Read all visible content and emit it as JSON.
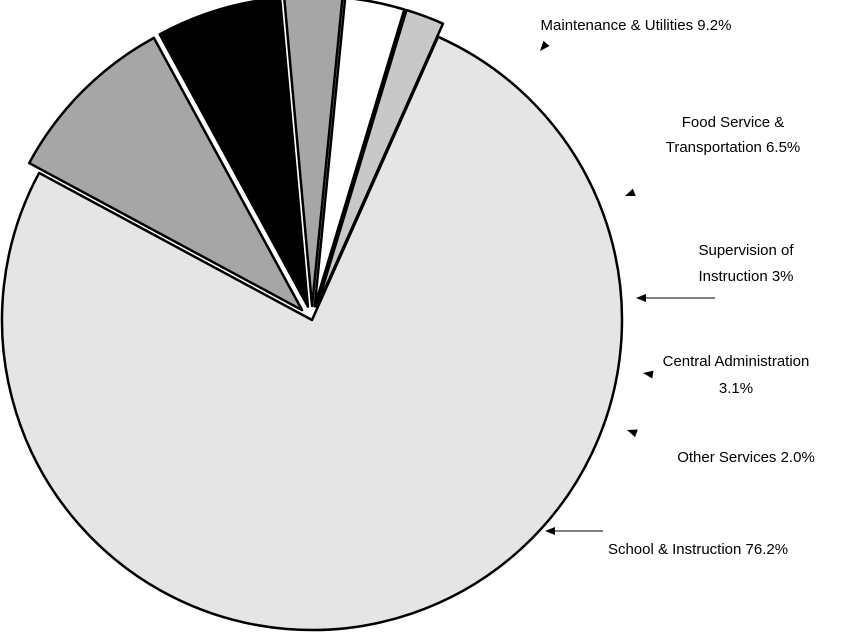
{
  "chart_data": {
    "type": "pie",
    "slices": [
      {
        "label": "School & Instruction",
        "value": 76.2,
        "color": "#e5e5e5",
        "exploded": false,
        "label_lines": [
          "School & Instruction 76.2%"
        ]
      },
      {
        "label": "Maintenance & Utilities",
        "value": 9.2,
        "color": "#a6a6a6",
        "exploded": true,
        "label_lines": [
          "Maintenance & Utilities 9.2%"
        ]
      },
      {
        "label": "Food Service & Transportation",
        "value": 6.5,
        "color": "#000000",
        "exploded": true,
        "label_lines": [
          "Food Service &",
          "Transportation 6.5%"
        ]
      },
      {
        "label": "Supervision of Instruction",
        "value": 3,
        "color": "#a6a6a6",
        "exploded": true,
        "label_lines": [
          "Supervision of",
          "Instruction 3%"
        ]
      },
      {
        "label": "Central Administration",
        "value": 3.1,
        "color": "#ffffff",
        "exploded": true,
        "label_lines": [
          "Central Administration",
          "3.1%"
        ]
      },
      {
        "label": "Other Services",
        "value": 2.0,
        "color": "#c8c8c8",
        "exploded": true,
        "label_lines": [
          "Other Services 2.0%"
        ]
      }
    ],
    "legend": "none",
    "label_style": "callout labels with arrows"
  }
}
